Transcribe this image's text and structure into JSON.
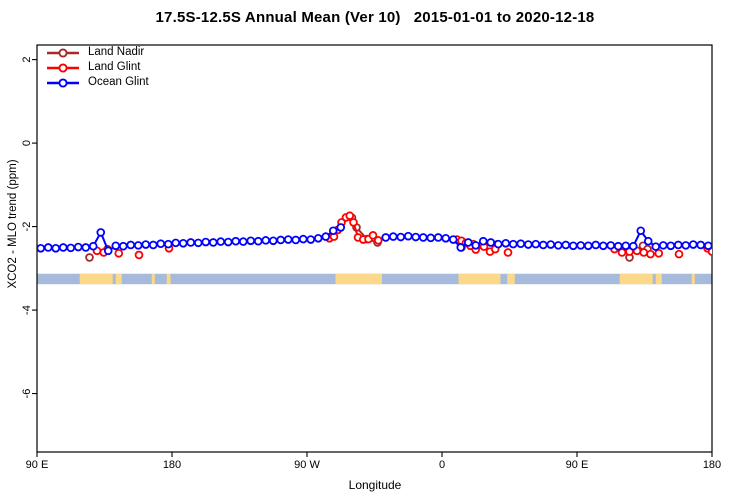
{
  "title": "17.5S-12.5S Annual Mean (Ver 10)   2015-01-01 to 2020-12-18",
  "legend": {
    "position": "top-left-inside-plot",
    "items": [
      {
        "label": "Land Nadir",
        "color": "#A52A2A"
      },
      {
        "label": "Land Glint",
        "color": "#FF0000"
      },
      {
        "label": "Ocean Glint",
        "color": "#0000FF"
      }
    ]
  },
  "axes": {
    "x": {
      "label": "Longitude",
      "range_deg": [
        90,
        540
      ],
      "ticks": [
        {
          "value": 90,
          "label": "90 E"
        },
        {
          "value": 180,
          "label": "180"
        },
        {
          "value": 270,
          "label": "90 W"
        },
        {
          "value": 360,
          "label": "0"
        },
        {
          "value": 450,
          "label": "90 E"
        },
        {
          "value": 540,
          "label": "180"
        }
      ]
    },
    "y": {
      "label": "XCO2 - MLO trend (ppm)",
      "range_ppm": [
        -7.4,
        2.35
      ],
      "ticks": [
        {
          "value": 2,
          "label": "2"
        },
        {
          "value": 0,
          "label": "0"
        },
        {
          "value": -2,
          "label": "-2"
        },
        {
          "value": -4,
          "label": "-4"
        },
        {
          "value": -6,
          "label": "-6"
        }
      ]
    }
  },
  "map_strip": {
    "description": "latitude-band land/ocean strip",
    "ocean_color": "#A6BADB",
    "land_color": "#FCD98A",
    "y_ppm": [
      -3.13,
      -3.38
    ],
    "land_patches_lon": [
      [
        118.5,
        140.5
      ],
      [
        142.5,
        146.5
      ],
      [
        166.5,
        168.5
      ],
      [
        176.5,
        179
      ],
      [
        289,
        320
      ],
      [
        371,
        399
      ],
      [
        403.5,
        408.5
      ],
      [
        478.5,
        500.5
      ],
      [
        502.5,
        506.5
      ],
      [
        526.5,
        528.5
      ]
    ]
  },
  "chart_data": {
    "type": "scatter",
    "title": "17.5S-12.5S Annual Mean (Ver 10)   2015-01-01 to 2020-12-18",
    "xlabel": "Longitude",
    "ylabel": "XCO2 - MLO trend (ppm)",
    "xlim": [
      90,
      540
    ],
    "ylim": [
      -7.4,
      2.35
    ],
    "grid": false,
    "legend_position": "top-left",
    "marker": "open-circle",
    "connect_gap_max_deg": 7,
    "series": [
      {
        "name": "Land Nadir",
        "color": "#A52A2A",
        "points": [
          [
            125,
            -2.74
          ],
          [
            137,
            -2.54
          ],
          [
            300,
            -1.79
          ],
          [
            303,
            -2.02
          ],
          [
            310,
            -2.3
          ],
          [
            317,
            -2.38
          ],
          [
            373,
            -2.5
          ],
          [
            381,
            -2.42
          ],
          [
            397,
            -2.42
          ],
          [
            485,
            -2.74
          ],
          [
            494,
            -2.46
          ],
          [
            497,
            -2.54
          ]
        ]
      },
      {
        "name": "Land Glint",
        "color": "#FF0000",
        "points": [
          [
            130,
            -2.58
          ],
          [
            134.5,
            -2.62
          ],
          [
            144.5,
            -2.64
          ],
          [
            158,
            -2.68
          ],
          [
            178,
            -2.52
          ],
          [
            285,
            -2.28
          ],
          [
            288,
            -2.24
          ],
          [
            290.5,
            -2.08
          ],
          [
            293,
            -1.9
          ],
          [
            296,
            -1.78
          ],
          [
            298.5,
            -1.74
          ],
          [
            301,
            -1.9
          ],
          [
            304,
            -2.26
          ],
          [
            307.5,
            -2.31
          ],
          [
            311,
            -2.3
          ],
          [
            314,
            -2.21
          ],
          [
            317.5,
            -2.33
          ],
          [
            370,
            -2.31
          ],
          [
            373,
            -2.34
          ],
          [
            376,
            -2.39
          ],
          [
            379,
            -2.46
          ],
          [
            382.5,
            -2.55
          ],
          [
            388,
            -2.48
          ],
          [
            392,
            -2.6
          ],
          [
            395.5,
            -2.54
          ],
          [
            404,
            -2.62
          ],
          [
            475,
            -2.54
          ],
          [
            480,
            -2.62
          ],
          [
            485,
            -2.6
          ],
          [
            490,
            -2.58
          ],
          [
            494.5,
            -2.62
          ],
          [
            499,
            -2.66
          ],
          [
            504.5,
            -2.64
          ],
          [
            518,
            -2.66
          ],
          [
            537,
            -2.52
          ],
          [
            540,
            -2.6
          ]
        ]
      },
      {
        "name": "Ocean Glint",
        "color": "#0000FF",
        "points": [
          [
            92.5,
            -2.52
          ],
          [
            97.5,
            -2.5
          ],
          [
            102.5,
            -2.52
          ],
          [
            107.5,
            -2.5
          ],
          [
            112.5,
            -2.51
          ],
          [
            117.5,
            -2.49
          ],
          [
            122.5,
            -2.5
          ],
          [
            127.5,
            -2.47
          ],
          [
            132.5,
            -2.14
          ],
          [
            137.5,
            -2.58
          ],
          [
            142.5,
            -2.46
          ],
          [
            147.5,
            -2.47
          ],
          [
            152.5,
            -2.44
          ],
          [
            157.5,
            -2.45
          ],
          [
            162.5,
            -2.43
          ],
          [
            167.5,
            -2.44
          ],
          [
            172.5,
            -2.41
          ],
          [
            177.5,
            -2.42
          ],
          [
            182.5,
            -2.39
          ],
          [
            187.5,
            -2.4
          ],
          [
            192.5,
            -2.38
          ],
          [
            197.5,
            -2.39
          ],
          [
            202.5,
            -2.37
          ],
          [
            207.5,
            -2.38
          ],
          [
            212.5,
            -2.36
          ],
          [
            217.5,
            -2.37
          ],
          [
            222.5,
            -2.35
          ],
          [
            227.5,
            -2.36
          ],
          [
            232.5,
            -2.34
          ],
          [
            237.5,
            -2.35
          ],
          [
            242.5,
            -2.33
          ],
          [
            247.5,
            -2.34
          ],
          [
            252.5,
            -2.32
          ],
          [
            257.5,
            -2.31
          ],
          [
            262.5,
            -2.32
          ],
          [
            267.5,
            -2.3
          ],
          [
            272.5,
            -2.31
          ],
          [
            277.5,
            -2.28
          ],
          [
            282.5,
            -2.24
          ],
          [
            287.5,
            -2.1
          ],
          [
            292.5,
            -2.02
          ],
          [
            322.5,
            -2.26
          ],
          [
            327.5,
            -2.24
          ],
          [
            332.5,
            -2.25
          ],
          [
            337.5,
            -2.23
          ],
          [
            342.5,
            -2.25
          ],
          [
            347.5,
            -2.26
          ],
          [
            352.5,
            -2.27
          ],
          [
            357.5,
            -2.26
          ],
          [
            362.5,
            -2.28
          ],
          [
            367.5,
            -2.31
          ],
          [
            372.5,
            -2.5
          ],
          [
            377.5,
            -2.38
          ],
          [
            382.5,
            -2.45
          ],
          [
            387.5,
            -2.35
          ],
          [
            392.5,
            -2.38
          ],
          [
            397.5,
            -2.42
          ],
          [
            402.5,
            -2.4
          ],
          [
            407.5,
            -2.42
          ],
          [
            412.5,
            -2.41
          ],
          [
            417.5,
            -2.43
          ],
          [
            422.5,
            -2.42
          ],
          [
            427.5,
            -2.44
          ],
          [
            432.5,
            -2.43
          ],
          [
            437.5,
            -2.45
          ],
          [
            442.5,
            -2.44
          ],
          [
            447.5,
            -2.46
          ],
          [
            452.5,
            -2.45
          ],
          [
            457.5,
            -2.46
          ],
          [
            462.5,
            -2.44
          ],
          [
            467.5,
            -2.46
          ],
          [
            472.5,
            -2.45
          ],
          [
            477.5,
            -2.47
          ],
          [
            482.5,
            -2.46
          ],
          [
            487.5,
            -2.47
          ],
          [
            492.5,
            -2.1
          ],
          [
            497.5,
            -2.35
          ],
          [
            502.5,
            -2.48
          ],
          [
            507.5,
            -2.45
          ],
          [
            512.5,
            -2.46
          ],
          [
            517.5,
            -2.44
          ],
          [
            522.5,
            -2.45
          ],
          [
            527.5,
            -2.43
          ],
          [
            532.5,
            -2.44
          ],
          [
            537.5,
            -2.46
          ]
        ]
      }
    ]
  }
}
